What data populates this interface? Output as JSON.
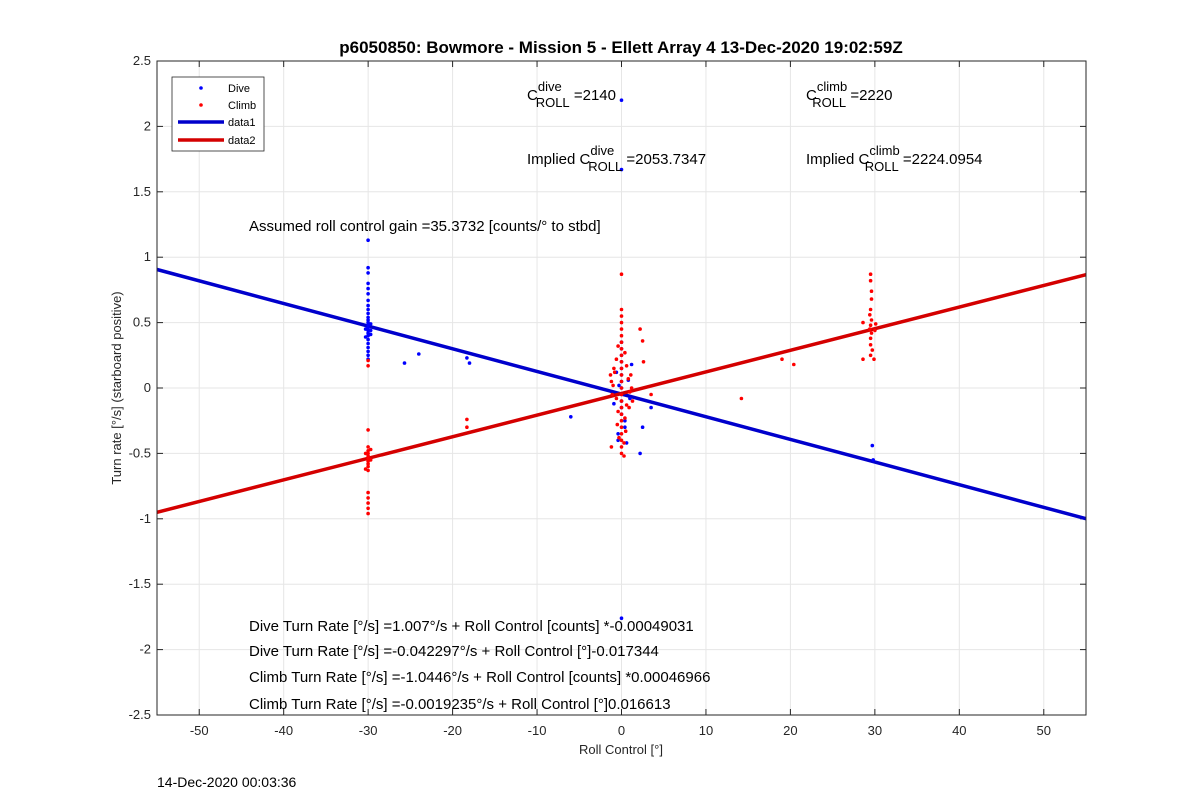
{
  "chart_data": {
    "type": "scatter",
    "title": "p6050850: Bowmore - Mission 5 - Ellett Array 4 13-Dec-2020 19:02:59Z",
    "xlabel": "Roll Control [°]",
    "ylabel": "Turn rate [°/s] (starboard positive)",
    "xlim": [
      -55,
      55
    ],
    "ylim": [
      -2.5,
      2.5
    ],
    "xticks": [
      -50,
      -40,
      -30,
      -20,
      -10,
      0,
      10,
      20,
      30,
      40,
      50
    ],
    "yticks": [
      -2.5,
      -2,
      -1.5,
      -1,
      -0.5,
      0,
      0.5,
      1,
      1.5,
      2,
      2.5
    ],
    "grid": true,
    "legend_position": "top-left",
    "legend": [
      {
        "name": "Dive",
        "kind": "marker",
        "color": "#0000ff"
      },
      {
        "name": "Climb",
        "kind": "marker",
        "color": "#ff0000"
      },
      {
        "name": "data1",
        "kind": "line",
        "color": "#0000cc"
      },
      {
        "name": "data2",
        "kind": "line",
        "color": "#d40000"
      }
    ],
    "series": [
      {
        "name": "Dive",
        "kind": "scatter",
        "color": "#0000ff",
        "points": [
          [
            -30,
            1.13
          ],
          [
            -30,
            0.92
          ],
          [
            -30,
            0.88
          ],
          [
            -30,
            0.8
          ],
          [
            -30,
            0.76
          ],
          [
            -30,
            0.72
          ],
          [
            -30,
            0.67
          ],
          [
            -30,
            0.63
          ],
          [
            -30,
            0.6
          ],
          [
            -30,
            0.57
          ],
          [
            -30,
            0.54
          ],
          [
            -30,
            0.52
          ],
          [
            -30,
            0.5
          ],
          [
            -30,
            0.48
          ],
          [
            -30,
            0.46
          ],
          [
            -30,
            0.44
          ],
          [
            -30,
            0.42
          ],
          [
            -30,
            0.4
          ],
          [
            -30,
            0.37
          ],
          [
            -30,
            0.34
          ],
          [
            -30,
            0.31
          ],
          [
            -30,
            0.28
          ],
          [
            -30,
            0.25
          ],
          [
            -30,
            0.22
          ],
          [
            -29.7,
            0.49
          ],
          [
            -29.7,
            0.44
          ],
          [
            -29.7,
            0.41
          ],
          [
            -30.3,
            0.45
          ],
          [
            -30.3,
            0.39
          ],
          [
            -25.7,
            0.19
          ],
          [
            -24,
            0.26
          ],
          [
            -18.3,
            0.23
          ],
          [
            -18,
            0.19
          ],
          [
            -6,
            -0.22
          ],
          [
            3.5,
            -0.15
          ],
          [
            2.5,
            -0.3
          ],
          [
            2.2,
            -0.5
          ],
          [
            0,
            2.2
          ],
          [
            0,
            1.67
          ],
          [
            0,
            -1.76
          ],
          [
            0,
            0.35
          ],
          [
            0,
            0.3
          ],
          [
            0,
            0.25
          ],
          [
            0,
            0.2
          ],
          [
            0,
            0.15
          ],
          [
            0,
            0.1
          ],
          [
            0,
            0.05
          ],
          [
            0,
            0.0
          ],
          [
            0,
            -0.05
          ],
          [
            0,
            -0.1
          ],
          [
            0,
            -0.15
          ],
          [
            0,
            -0.2
          ],
          [
            0.4,
            -0.25
          ],
          [
            0.4,
            -0.3
          ],
          [
            -0.4,
            -0.35
          ],
          [
            -0.4,
            -0.4
          ],
          [
            0.6,
            -0.42
          ],
          [
            -0.6,
            0.12
          ],
          [
            0.8,
            0.06
          ],
          [
            1.0,
            -0.08
          ],
          [
            -0.9,
            -0.12
          ],
          [
            1.2,
            0.18
          ],
          [
            29.7,
            -0.44
          ],
          [
            29.8,
            -0.55
          ],
          [
            -0.3,
            0.02
          ]
        ]
      },
      {
        "name": "Climb",
        "kind": "scatter",
        "color": "#ff0000",
        "points": [
          [
            -30,
            -0.32
          ],
          [
            -30,
            -0.45
          ],
          [
            -30,
            -0.48
          ],
          [
            -30,
            -0.5
          ],
          [
            -30,
            -0.52
          ],
          [
            -30,
            -0.54
          ],
          [
            -30,
            -0.56
          ],
          [
            -30,
            -0.58
          ],
          [
            -30,
            -0.6
          ],
          [
            -30,
            -0.63
          ],
          [
            -30,
            -0.8
          ],
          [
            -30,
            -0.84
          ],
          [
            -30,
            -0.88
          ],
          [
            -30,
            -0.92
          ],
          [
            -30,
            -0.96
          ],
          [
            -30.3,
            -0.5
          ],
          [
            -29.7,
            -0.55
          ],
          [
            -30.3,
            -0.62
          ],
          [
            -29.7,
            -0.47
          ],
          [
            -30,
            0.17
          ],
          [
            -30,
            0.21
          ],
          [
            -18.3,
            -0.24
          ],
          [
            -18.3,
            -0.3
          ],
          [
            0,
            0.87
          ],
          [
            0,
            0.6
          ],
          [
            0,
            0.55
          ],
          [
            0,
            0.5
          ],
          [
            0,
            0.45
          ],
          [
            0,
            0.4
          ],
          [
            0,
            0.35
          ],
          [
            0,
            0.3
          ],
          [
            0,
            0.25
          ],
          [
            0,
            0.2
          ],
          [
            0,
            0.15
          ],
          [
            0,
            0.1
          ],
          [
            0,
            0.05
          ],
          [
            0,
            0.0
          ],
          [
            0,
            -0.05
          ],
          [
            0,
            -0.1
          ],
          [
            0,
            -0.15
          ],
          [
            0,
            -0.2
          ],
          [
            0,
            -0.25
          ],
          [
            0,
            -0.3
          ],
          [
            0,
            -0.35
          ],
          [
            0,
            -0.4
          ],
          [
            0,
            -0.45
          ],
          [
            0,
            -0.5
          ],
          [
            0.3,
            -0.52
          ],
          [
            -0.4,
            0.32
          ],
          [
            0.4,
            0.27
          ],
          [
            -0.6,
            0.22
          ],
          [
            0.6,
            0.17
          ],
          [
            -0.8,
            0.12
          ],
          [
            0.8,
            0.07
          ],
          [
            -1.0,
            0.02
          ],
          [
            1.0,
            -0.03
          ],
          [
            -0.6,
            -0.08
          ],
          [
            0.6,
            -0.13
          ],
          [
            -0.4,
            -0.18
          ],
          [
            0.4,
            -0.23
          ],
          [
            -0.5,
            -0.28
          ],
          [
            0.5,
            -0.33
          ],
          [
            -0.3,
            -0.38
          ],
          [
            0.3,
            -0.42
          ],
          [
            -1.2,
            0.05
          ],
          [
            1.2,
            0.0
          ],
          [
            -1.1,
            -0.05
          ],
          [
            1.1,
            0.1
          ],
          [
            -0.9,
            0.15
          ],
          [
            0.9,
            -0.15
          ],
          [
            -1.3,
            0.1
          ],
          [
            1.3,
            -0.1
          ],
          [
            2.2,
            0.45
          ],
          [
            2.5,
            0.36
          ],
          [
            2.6,
            0.2
          ],
          [
            3.5,
            -0.05
          ],
          [
            -1.2,
            -0.45
          ],
          [
            14.2,
            -0.08
          ],
          [
            19,
            0.22
          ],
          [
            20.4,
            0.18
          ],
          [
            29.5,
            0.87
          ],
          [
            29.5,
            0.82
          ],
          [
            29.6,
            0.74
          ],
          [
            29.6,
            0.68
          ],
          [
            29.5,
            0.6
          ],
          [
            29.4,
            0.56
          ],
          [
            29.6,
            0.52
          ],
          [
            29.5,
            0.48
          ],
          [
            29.4,
            0.45
          ],
          [
            29.6,
            0.42
          ],
          [
            29.5,
            0.38
          ],
          [
            29.5,
            0.33
          ],
          [
            29.7,
            0.29
          ],
          [
            29.5,
            0.25
          ],
          [
            29.9,
            0.22
          ],
          [
            28.6,
            0.5
          ],
          [
            28.6,
            0.22
          ],
          [
            30.1,
            0.49
          ],
          [
            30,
            0.44
          ]
        ]
      },
      {
        "name": "data1",
        "kind": "line",
        "color": "#0000cc",
        "points": [
          [
            -55,
            0.906
          ],
          [
            55,
            -0.999
          ]
        ]
      },
      {
        "name": "data2",
        "kind": "line",
        "color": "#d40000",
        "points": [
          [
            -55,
            -0.95
          ],
          [
            55,
            0.866
          ]
        ]
      }
    ]
  },
  "annotations": {
    "c_dive": {
      "main": "C",
      "sup": "dive",
      "sub": "ROLL",
      "value": " =2140"
    },
    "c_climb": {
      "main": "C",
      "sup": "climb",
      "sub": "ROLL",
      "value": " =2220"
    },
    "implied_dive": {
      "prefix": "Implied ",
      "main": "C",
      "sup": "dive",
      "sub": "ROLL",
      "value": " =2053.7347"
    },
    "implied_climb": {
      "prefix": "Implied ",
      "main": "C",
      "sup": "climb",
      "sub": "ROLL",
      "value": " =2224.0954"
    },
    "gain": "Assumed roll control gain =35.3732 [counts/° to stbd]",
    "fit_lines": [
      "Dive Turn Rate [°/s] =1.007°/s + Roll Control [counts] *-0.00049031",
      "Dive Turn Rate [°/s] =-0.042297°/s + Roll Control [°]-0.017344",
      "Climb Turn Rate [°/s] =-1.0446°/s + Roll Control [counts] *0.00046966",
      "Climb Turn Rate [°/s] =-0.0019235°/s + Roll Control [°]0.016613"
    ]
  },
  "footer": {
    "timestamp": "14-Dec-2020 00:03:36"
  }
}
